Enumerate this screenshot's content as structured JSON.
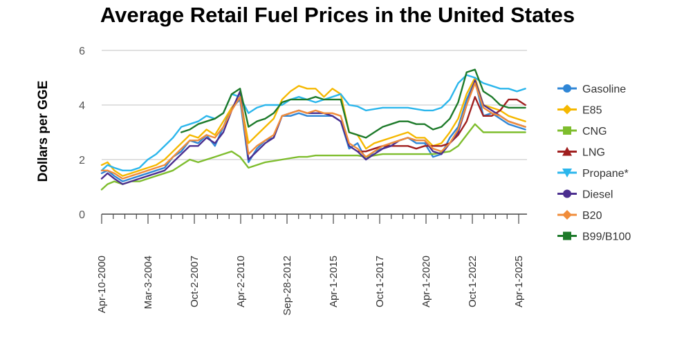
{
  "chart_data": {
    "type": "line",
    "title": "Average Retail Fuel Prices in the United States",
    "xlabel": "",
    "ylabel": "Dollars per GGE",
    "ylim": [
      0,
      6
    ],
    "yticks": [
      0,
      2,
      4,
      6
    ],
    "grid": true,
    "legend_position": "right",
    "xtick_labels": [
      "Apr-10-2000",
      "Mar-3-2004",
      "Oct-2-2007",
      "Apr-2-2010",
      "Sep-28-2012",
      "Apr-1-2015",
      "Oct-1-2017",
      "Apr-1-2020",
      "Oct-1-2022",
      "Apr-1-2025"
    ],
    "x": [
      2000.25,
      2000.6,
      2001.0,
      2001.5,
      2002.0,
      2002.5,
      2003.0,
      2003.5,
      2004.0,
      2004.5,
      2005.0,
      2005.5,
      2006.0,
      2006.5,
      2007.0,
      2007.5,
      2008.0,
      2008.5,
      2009.0,
      2009.5,
      2010.0,
      2010.5,
      2011.0,
      2011.5,
      2012.0,
      2012.5,
      2013.0,
      2013.5,
      2014.0,
      2014.5,
      2015.0,
      2015.5,
      2016.0,
      2016.5,
      2017.0,
      2017.5,
      2018.0,
      2018.5,
      2019.0,
      2019.5,
      2020.0,
      2020.5,
      2021.0,
      2021.5,
      2022.0,
      2022.5,
      2023.0,
      2023.5,
      2024.0,
      2024.5,
      2025.0,
      2025.5
    ],
    "series": [
      {
        "name": "Gasoline",
        "color": "#2f86d6",
        "marker": "circle",
        "values": [
          1.5,
          1.6,
          1.4,
          1.2,
          1.3,
          1.4,
          1.5,
          1.6,
          1.7,
          2.1,
          2.3,
          2.7,
          2.6,
          2.9,
          2.5,
          3.2,
          3.9,
          4.2,
          1.9,
          2.4,
          2.7,
          2.8,
          3.6,
          3.6,
          3.7,
          3.6,
          3.6,
          3.6,
          3.6,
          3.4,
          2.4,
          2.6,
          2.0,
          2.3,
          2.4,
          2.6,
          2.7,
          2.8,
          2.6,
          2.6,
          2.1,
          2.2,
          2.8,
          3.2,
          4.2,
          4.9,
          3.6,
          3.7,
          3.5,
          3.3,
          3.2,
          3.1
        ]
      },
      {
        "name": "E85",
        "color": "#f5b800",
        "marker": "diamond",
        "values": [
          1.8,
          1.9,
          1.6,
          1.4,
          1.5,
          1.6,
          1.7,
          1.8,
          2.0,
          2.3,
          2.6,
          2.9,
          2.8,
          3.1,
          2.9,
          3.4,
          3.9,
          4.3,
          2.6,
          2.9,
          3.2,
          3.5,
          4.2,
          4.5,
          4.7,
          4.6,
          4.6,
          4.3,
          4.6,
          4.4,
          3.0,
          2.9,
          2.4,
          2.6,
          2.7,
          2.8,
          2.9,
          3.0,
          2.8,
          2.8,
          2.5,
          2.6,
          3.0,
          3.5,
          4.4,
          5.0,
          4.0,
          3.9,
          3.8,
          3.6,
          3.5,
          3.4
        ]
      },
      {
        "name": "CNG",
        "color": "#7ebd2d",
        "marker": "square",
        "values": [
          0.9,
          1.1,
          1.2,
          1.1,
          1.2,
          1.2,
          1.3,
          1.4,
          1.5,
          1.6,
          1.8,
          2.0,
          1.9,
          2.0,
          2.1,
          2.2,
          2.3,
          2.1,
          1.7,
          1.8,
          1.9,
          1.95,
          2.0,
          2.05,
          2.1,
          2.1,
          2.15,
          2.15,
          2.15,
          2.15,
          2.15,
          2.15,
          2.1,
          2.15,
          2.2,
          2.2,
          2.2,
          2.2,
          2.2,
          2.2,
          2.2,
          2.25,
          2.3,
          2.5,
          2.9,
          3.3,
          3.0,
          3.0,
          3.0,
          3.0,
          3.0,
          3.0
        ]
      },
      {
        "name": "LNG",
        "color": "#a01f1f",
        "marker": "triangle",
        "values": [
          null,
          null,
          null,
          null,
          null,
          null,
          null,
          null,
          null,
          null,
          null,
          null,
          null,
          null,
          null,
          null,
          null,
          null,
          null,
          null,
          null,
          null,
          null,
          null,
          null,
          null,
          null,
          null,
          null,
          null,
          null,
          2.3,
          2.3,
          2.4,
          2.5,
          2.5,
          2.5,
          2.5,
          2.4,
          2.5,
          2.5,
          2.5,
          2.6,
          2.9,
          3.4,
          4.3,
          3.6,
          3.6,
          3.8,
          4.2,
          4.2,
          4.0
        ]
      },
      {
        "name": "Propane*",
        "color": "#2bb6ec",
        "marker": "triangle-down",
        "values": [
          1.6,
          1.8,
          1.7,
          1.6,
          1.6,
          1.7,
          2.0,
          2.2,
          2.5,
          2.8,
          3.2,
          3.3,
          3.4,
          3.6,
          3.5,
          3.7,
          4.4,
          4.3,
          3.7,
          3.9,
          4.0,
          4.0,
          4.0,
          4.2,
          4.3,
          4.2,
          4.1,
          4.2,
          4.3,
          4.4,
          4.0,
          3.95,
          3.8,
          3.85,
          3.9,
          3.9,
          3.9,
          3.9,
          3.85,
          3.8,
          3.8,
          3.9,
          4.2,
          4.8,
          5.1,
          5.0,
          4.8,
          4.7,
          4.6,
          4.6,
          4.5,
          4.6
        ]
      },
      {
        "name": "Diesel",
        "color": "#4b2e8f",
        "marker": "circle",
        "values": [
          1.3,
          1.5,
          1.3,
          1.1,
          1.2,
          1.3,
          1.4,
          1.5,
          1.6,
          1.9,
          2.2,
          2.5,
          2.5,
          2.8,
          2.6,
          3.0,
          3.8,
          4.5,
          2.0,
          2.3,
          2.6,
          2.8,
          3.6,
          3.7,
          3.8,
          3.7,
          3.7,
          3.7,
          3.6,
          3.4,
          2.5,
          2.3,
          2.0,
          2.2,
          2.4,
          2.5,
          2.7,
          2.8,
          2.7,
          2.7,
          2.3,
          2.2,
          2.6,
          3.0,
          4.0,
          4.9,
          4.0,
          3.8,
          3.6,
          3.4,
          3.3,
          3.2
        ]
      },
      {
        "name": "B20",
        "color": "#f08c3a",
        "marker": "diamond",
        "values": [
          1.6,
          1.6,
          1.5,
          1.3,
          1.4,
          1.5,
          1.6,
          1.7,
          1.8,
          2.1,
          2.4,
          2.7,
          2.7,
          2.9,
          2.8,
          3.2,
          3.8,
          4.3,
          2.2,
          2.5,
          2.7,
          2.9,
          3.6,
          3.7,
          3.8,
          3.7,
          3.8,
          3.7,
          3.7,
          3.6,
          2.6,
          2.4,
          2.1,
          2.3,
          2.5,
          2.6,
          2.7,
          2.8,
          2.7,
          2.7,
          2.4,
          2.3,
          2.6,
          3.1,
          4.0,
          4.8,
          3.9,
          3.7,
          3.6,
          3.4,
          3.3,
          3.2
        ]
      },
      {
        "name": "B99/B100",
        "color": "#1d7a2a",
        "marker": "square",
        "values": [
          null,
          null,
          null,
          null,
          null,
          null,
          null,
          null,
          null,
          null,
          3.0,
          3.1,
          3.3,
          3.4,
          3.5,
          3.7,
          4.4,
          4.6,
          3.2,
          3.4,
          3.5,
          3.7,
          4.1,
          4.2,
          4.2,
          4.2,
          4.3,
          4.2,
          4.2,
          4.2,
          3.0,
          2.9,
          2.8,
          3.0,
          3.2,
          3.3,
          3.4,
          3.4,
          3.3,
          3.3,
          3.1,
          3.2,
          3.5,
          4.1,
          5.2,
          5.3,
          4.5,
          4.3,
          4.0,
          3.9,
          3.9,
          3.9
        ]
      }
    ]
  }
}
